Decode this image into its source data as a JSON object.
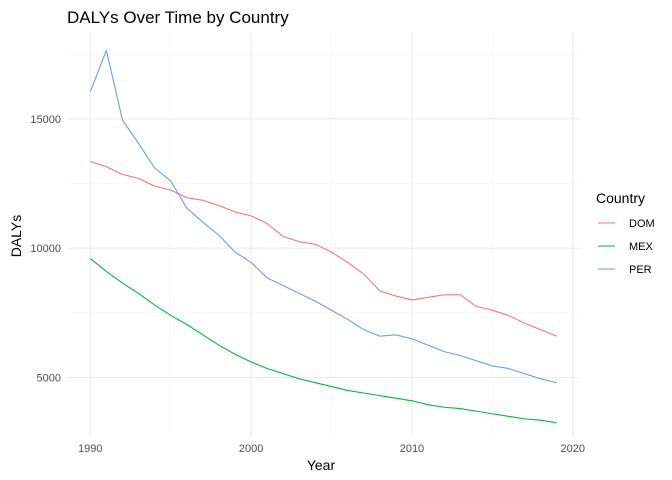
{
  "chart_data": {
    "type": "line",
    "title": "DALYs Over Time by Country",
    "xlabel": "Year",
    "ylabel": "DALYs",
    "x": [
      1990,
      1991,
      1992,
      1993,
      1994,
      1995,
      1996,
      1997,
      1998,
      1999,
      2000,
      2001,
      2002,
      2003,
      2004,
      2005,
      2006,
      2007,
      2008,
      2009,
      2010,
      2011,
      2012,
      2013,
      2014,
      2015,
      2016,
      2017,
      2018,
      2019
    ],
    "xlim": [
      1988.55,
      2020.45
    ],
    "ylim": [
      2700,
      18320
    ],
    "xticks": [
      1990,
      2000,
      2010,
      2020
    ],
    "xtick_labels": [
      "1990",
      "2000",
      "2010",
      "2020"
    ],
    "xminor": [
      1995,
      2005,
      2015
    ],
    "yticks": [
      5000,
      10000,
      15000
    ],
    "ytick_labels": [
      "5000",
      "10000",
      "15000"
    ],
    "yminor": [
      7500,
      12500,
      17500
    ],
    "grid": true,
    "legend": {
      "title": "Country",
      "placement": "right"
    },
    "series": [
      {
        "name": "DOM",
        "color": "#F8766D",
        "values": [
          13350,
          13150,
          12850,
          12700,
          12400,
          12250,
          11950,
          11850,
          11650,
          11400,
          11250,
          10950,
          10450,
          10250,
          10150,
          9850,
          9450,
          9000,
          8350,
          8150,
          8000,
          8100,
          8200,
          8200,
          7750,
          7600,
          7400,
          7100,
          6850,
          6600
        ]
      },
      {
        "name": "MEX",
        "color": "#00BA38",
        "values": [
          9600,
          9100,
          8650,
          8250,
          7800,
          7400,
          7050,
          6650,
          6250,
          5900,
          5600,
          5350,
          5150,
          4950,
          4800,
          4650,
          4500,
          4400,
          4300,
          4200,
          4100,
          3950,
          3850,
          3800,
          3700,
          3600,
          3500,
          3400,
          3350,
          3250
        ]
      },
      {
        "name": "PER",
        "color": "#619CFF",
        "values": [
          16050,
          17650,
          14950,
          14050,
          13100,
          12600,
          11550,
          11000,
          10500,
          9850,
          9450,
          8850,
          8550,
          8250,
          7950,
          7600,
          7250,
          6850,
          6600,
          6650,
          6500,
          6250,
          6000,
          5850,
          5650,
          5450,
          5350,
          5150,
          4950,
          4800
        ]
      }
    ]
  }
}
